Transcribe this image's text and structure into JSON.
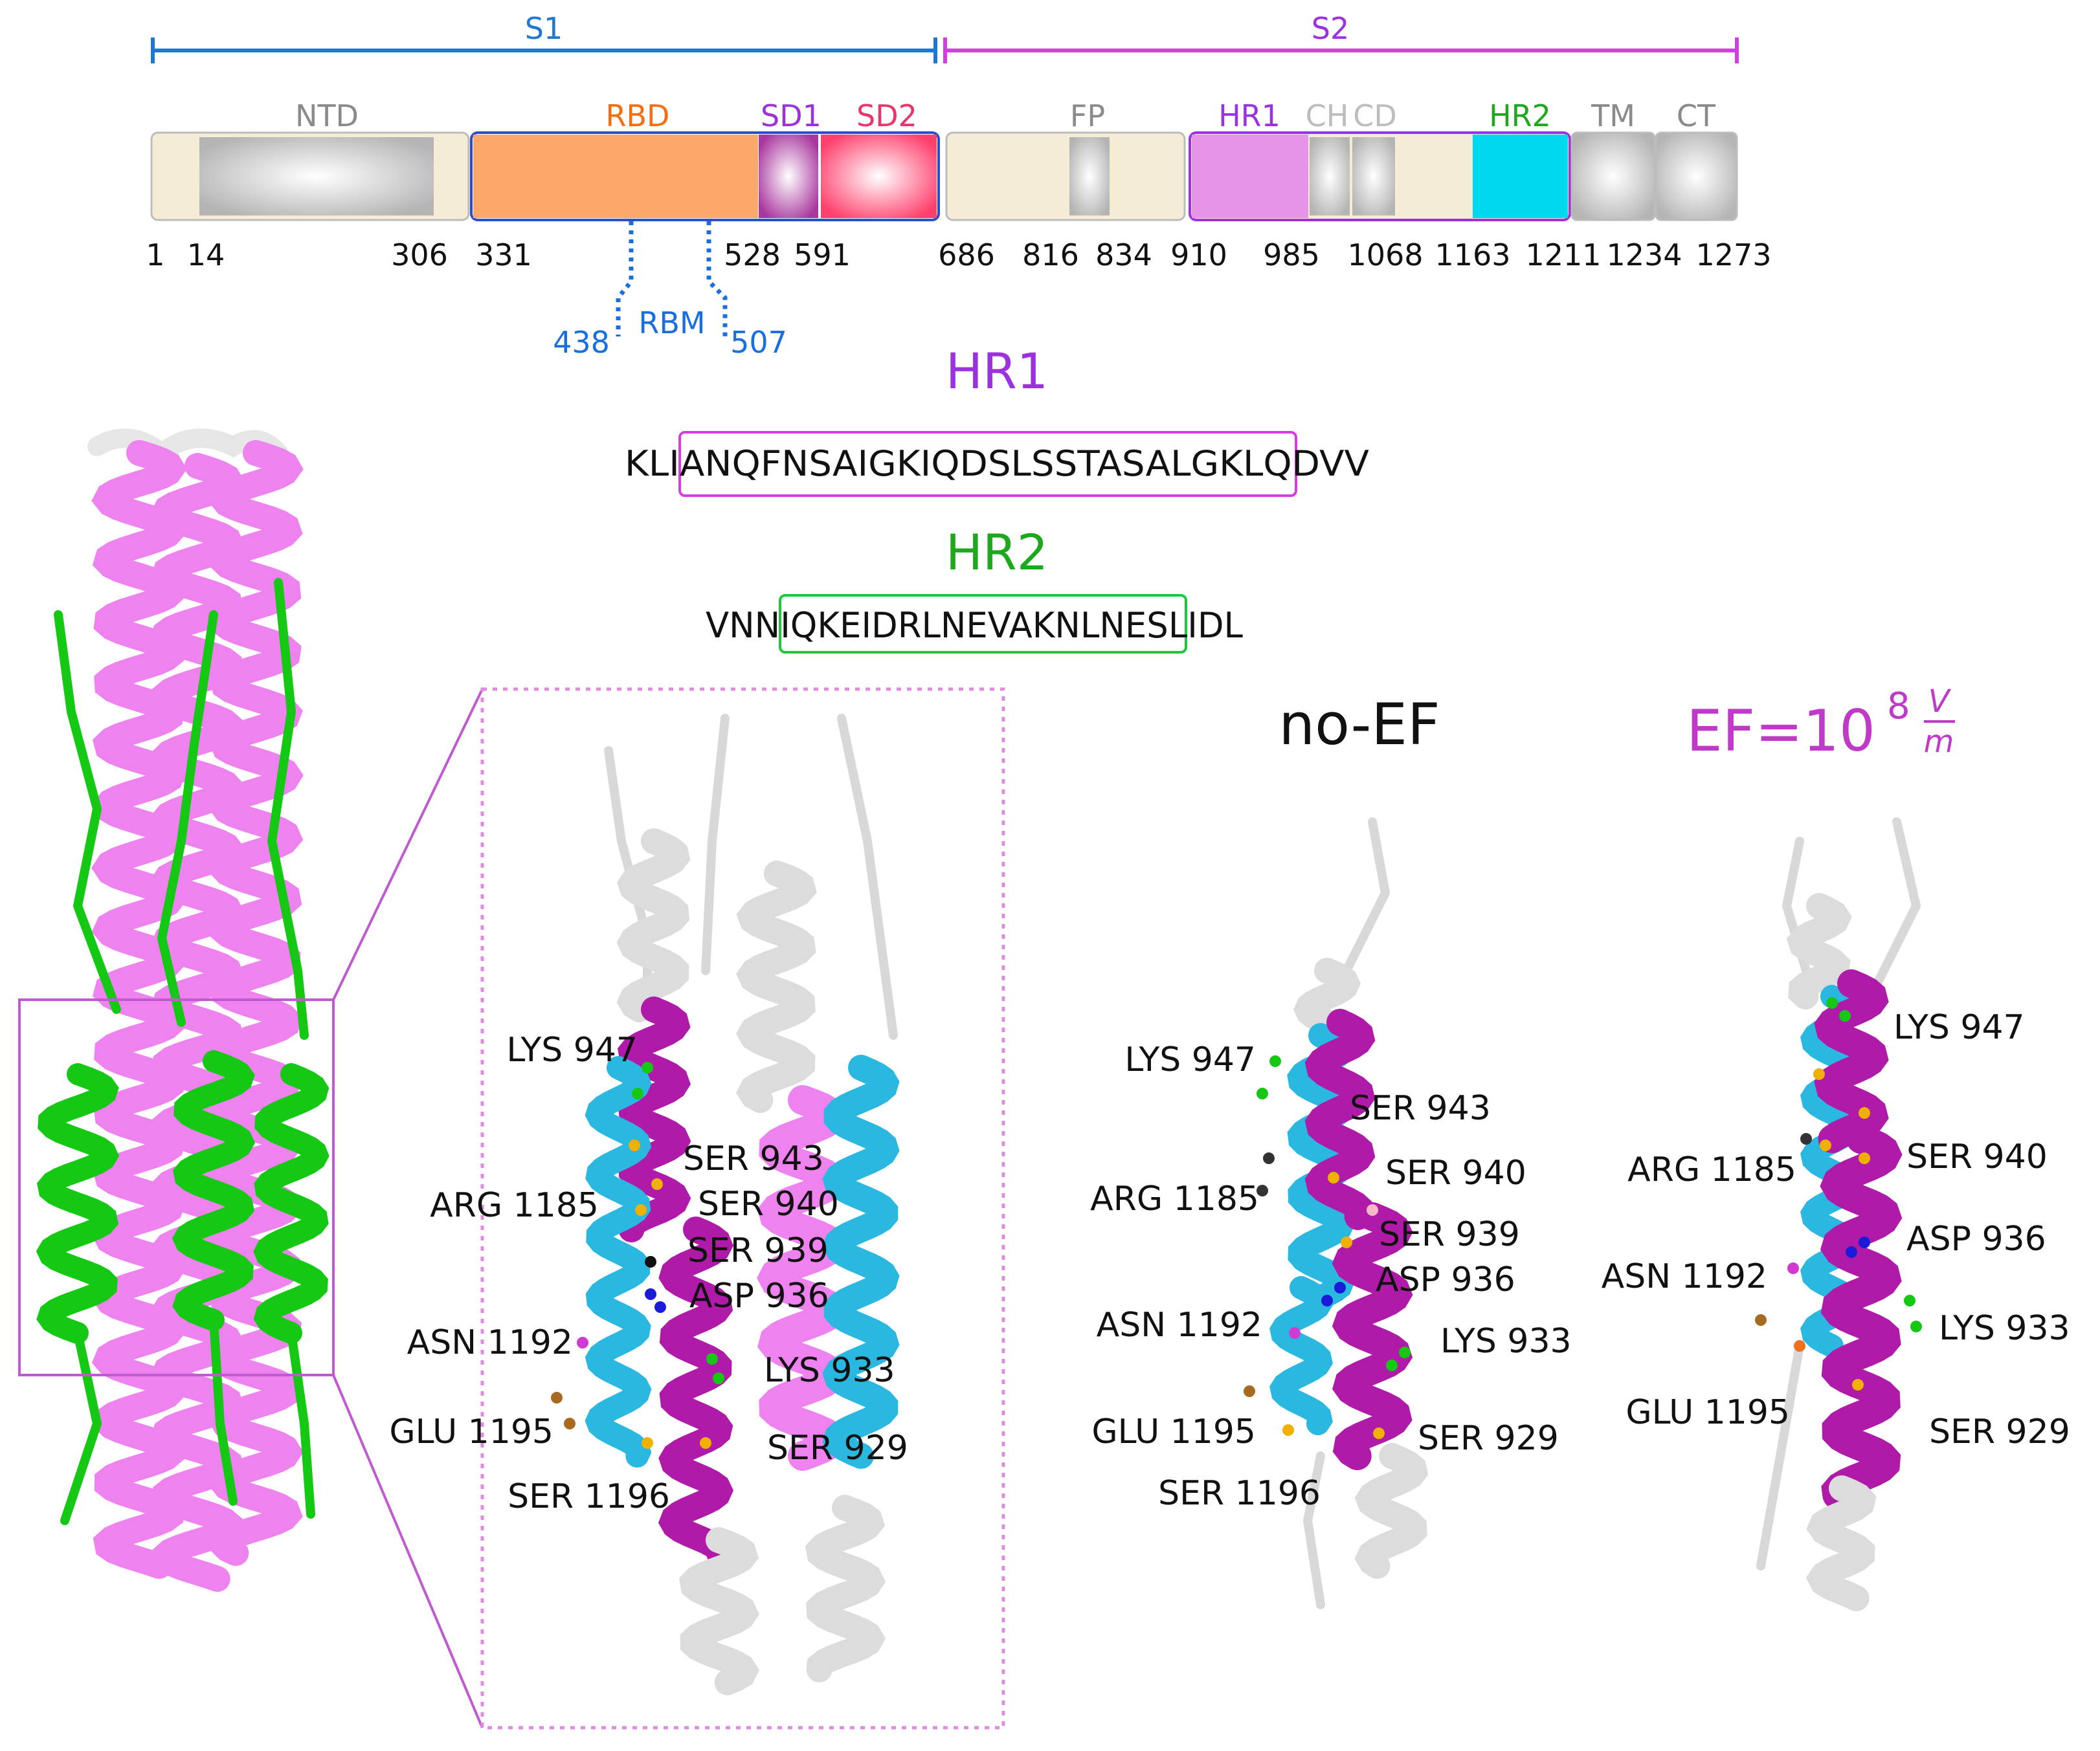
{
  "colors": {
    "s1": "#1f77d0",
    "s2": "#d63ce0",
    "beige": "#f5ecd6",
    "grey": "#c8c8c8",
    "rbd": "#fca76a",
    "sd1": "#b04aa8",
    "sd2": "#ff4d75",
    "hr1": "#e695e6",
    "hr2": "#00d8f0",
    "ntdtext": "#8a8a8a",
    "rbdtext": "#f26f11",
    "sd1text": "#9a32d8",
    "sd2text": "#e8356a",
    "hr1text": "#9a32e0",
    "hr2text": "#1ea81e",
    "rbm": "#1a6fe0",
    "helix_pink": "#ee82ee",
    "helix_green": "#14c814",
    "helix_magenta": "#b01aa8",
    "helix_cyan": "#2ab8e0"
  },
  "segments": {
    "s1": "S1",
    "s2": "S2"
  },
  "domains": {
    "ntd": "NTD",
    "rbd": "RBD",
    "sd1": "SD1",
    "sd2": "SD2",
    "fp": "FP",
    "hr1": "HR1",
    "ch": "CH",
    "cd": "CD",
    "hr2": "HR2",
    "tm": "TM",
    "ct": "CT"
  },
  "positions": [
    "1",
    "14",
    "306",
    "331",
    "528",
    "591",
    "686",
    "816",
    "834",
    "910",
    "985",
    "1068",
    "1163",
    "1211",
    "1234",
    "1273"
  ],
  "rbm": {
    "label": "RBM",
    "start": "438",
    "end": "507"
  },
  "sequences": {
    "hr1_title": "HR1",
    "hr1_seq": "KLIANQFNSAIGKIQDSLSSTASALGKLQDVV",
    "hr2_title": "HR2",
    "hr2_seq": "VNNIQKEIDRLNEVAKNLNESLIDL"
  },
  "panels": {
    "noef_title": "no-EF",
    "ef_prefix": "EF=10",
    "ef_exp": "8",
    "ef_num": "V",
    "ef_den": "m"
  },
  "zoom_labels": [
    "LYS 947",
    "ARG 1185",
    "SER 943",
    "SER 940",
    "SER 939",
    "ASP 936",
    "ASN 1192",
    "LYS 933",
    "GLU 1195",
    "SER 929",
    "SER 1196"
  ],
  "noef_labels": [
    "LYS 947",
    "SER 943",
    "ARG 1185",
    "SER 940",
    "SER 939",
    "ASP 936",
    "ASN 1192",
    "LYS 933",
    "GLU 1195",
    "SER 929",
    "SER 1196"
  ],
  "ef_labels": [
    "LYS 947",
    "ARG 1185",
    "SER 940",
    "ASP 936",
    "ASN 1192",
    "LYS 933",
    "GLU 1195",
    "SER 929"
  ]
}
